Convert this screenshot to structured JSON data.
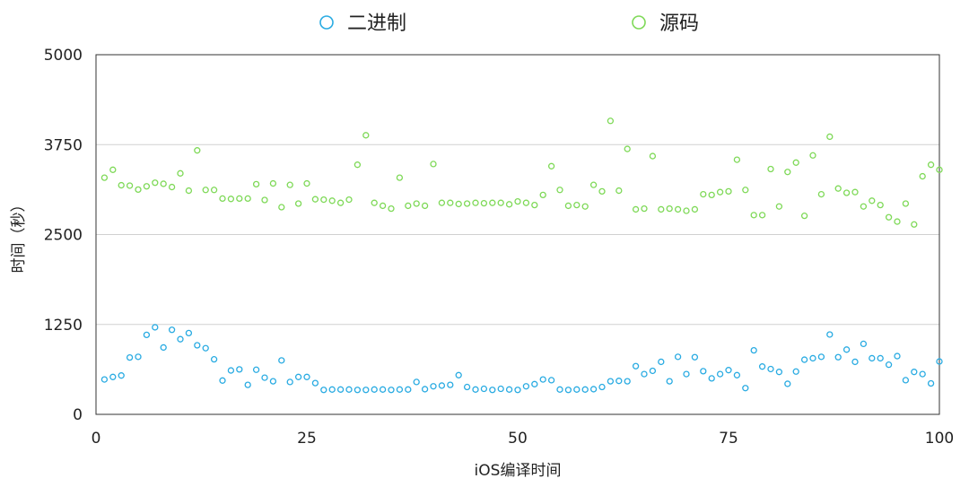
{
  "chart_data": {
    "type": "scatter",
    "xlabel": "iOS编译时间",
    "ylabel": "时间（秒）",
    "xlim": [
      0,
      100
    ],
    "ylim": [
      0,
      5000
    ],
    "xticks": [
      "0",
      "25",
      "50",
      "75",
      "100"
    ],
    "yticks": [
      "0",
      "1250",
      "2500",
      "3750",
      "5000"
    ],
    "grid": "horizontal",
    "legend_position": "top-center",
    "marker": "hollow-circle",
    "series": [
      {
        "name": "二进制",
        "color": "#29abe2",
        "x": [
          1,
          2,
          3,
          4,
          5,
          6,
          7,
          8,
          9,
          10,
          11,
          12,
          13,
          14,
          15,
          16,
          17,
          18,
          19,
          20,
          21,
          22,
          23,
          24,
          25,
          26,
          27,
          28,
          29,
          30,
          31,
          32,
          33,
          34,
          35,
          36,
          37,
          38,
          39,
          40,
          41,
          42,
          43,
          44,
          45,
          46,
          47,
          48,
          49,
          50,
          51,
          52,
          53,
          54,
          55,
          56,
          57,
          58,
          59,
          60,
          61,
          62,
          63,
          64,
          65,
          66,
          67,
          68,
          69,
          70,
          71,
          72,
          73,
          74,
          75,
          76,
          77,
          78,
          79,
          80,
          81,
          82,
          83,
          84,
          85,
          86,
          87,
          88,
          89,
          90,
          91,
          92,
          93,
          94,
          95,
          96,
          97,
          98,
          99,
          100
        ],
        "y": [
          485,
          520,
          540,
          790,
          800,
          1105,
          1210,
          930,
          1175,
          1045,
          1130,
          960,
          920,
          765,
          470,
          610,
          625,
          410,
          620,
          510,
          460,
          750,
          450,
          520,
          520,
          435,
          340,
          345,
          345,
          345,
          340,
          340,
          345,
          345,
          340,
          345,
          345,
          450,
          350,
          390,
          400,
          410,
          545,
          380,
          345,
          355,
          340,
          355,
          345,
          340,
          390,
          420,
          485,
          475,
          345,
          340,
          345,
          345,
          350,
          380,
          460,
          465,
          460,
          670,
          560,
          605,
          730,
          460,
          800,
          560,
          795,
          600,
          500,
          560,
          615,
          545,
          365,
          890,
          665,
          630,
          590,
          425,
          595,
          760,
          780,
          800,
          1110,
          795,
          900,
          730,
          980,
          780,
          780,
          690,
          810,
          475,
          590,
          560,
          430,
          735
        ]
      },
      {
        "name": "源码",
        "color": "#7ed957",
        "x": [
          1,
          2,
          3,
          4,
          5,
          6,
          7,
          8,
          9,
          10,
          11,
          12,
          13,
          14,
          15,
          16,
          17,
          18,
          19,
          20,
          21,
          22,
          23,
          24,
          25,
          26,
          27,
          28,
          29,
          30,
          31,
          32,
          33,
          34,
          35,
          36,
          37,
          38,
          39,
          40,
          41,
          42,
          43,
          44,
          45,
          46,
          47,
          48,
          49,
          50,
          51,
          52,
          53,
          54,
          55,
          56,
          57,
          58,
          59,
          60,
          61,
          62,
          63,
          64,
          65,
          66,
          67,
          68,
          69,
          70,
          71,
          72,
          73,
          74,
          75,
          76,
          77,
          78,
          79,
          80,
          81,
          82,
          83,
          84,
          85,
          86,
          87,
          88,
          89,
          90,
          91,
          92,
          93,
          94,
          95,
          96,
          97,
          98,
          99,
          100
        ],
        "y": [
          3290,
          3400,
          3185,
          3180,
          3125,
          3170,
          3220,
          3205,
          3160,
          3350,
          3110,
          3670,
          3120,
          3120,
          3000,
          2995,
          3000,
          3000,
          3200,
          2980,
          3210,
          2880,
          3190,
          2930,
          3210,
          2990,
          2985,
          2970,
          2940,
          2985,
          3470,
          3880,
          2940,
          2900,
          2860,
          3290,
          2900,
          2930,
          2900,
          3480,
          2940,
          2940,
          2925,
          2930,
          2940,
          2935,
          2940,
          2940,
          2920,
          2960,
          2940,
          2910,
          3050,
          3450,
          3120,
          2900,
          2910,
          2890,
          3190,
          3100,
          4080,
          3110,
          3690,
          2850,
          2860,
          3590,
          2850,
          2860,
          2850,
          2830,
          2850,
          3060,
          3050,
          3090,
          3100,
          3540,
          3120,
          2770,
          2770,
          3410,
          2890,
          3370,
          3500,
          2760,
          3600,
          3060,
          3860,
          3140,
          3080,
          3090,
          2890,
          2970,
          2910,
          2740,
          2680,
          2930,
          2640,
          3310,
          3470,
          3400
        ]
      }
    ]
  }
}
